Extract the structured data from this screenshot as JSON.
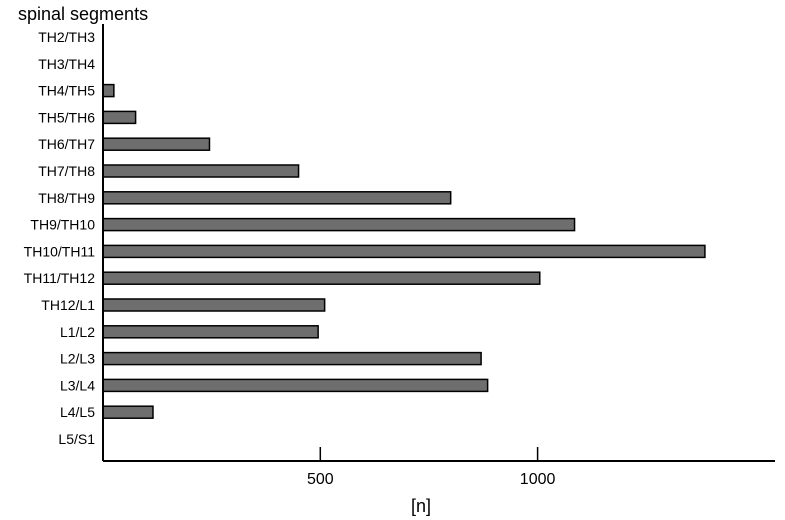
{
  "chart_data": {
    "type": "bar",
    "orientation": "horizontal",
    "title": "",
    "ylabel": "spinal segments",
    "xlabel": "[n]",
    "categories": [
      "TH2/TH3",
      "TH3/TH4",
      "TH4/TH5",
      "TH5/TH6",
      "TH6/TH7",
      "TH7/TH8",
      "TH8/TH9",
      "TH9/TH10",
      "TH10/TH11",
      "TH11/TH12",
      "TH12/L1",
      "L1/L2",
      "L2/L3",
      "L3/L4",
      "L4/L5",
      "L5/S1"
    ],
    "values": [
      0,
      0,
      25,
      75,
      245,
      450,
      800,
      1085,
      1385,
      1005,
      510,
      495,
      870,
      885,
      115,
      0
    ],
    "xlim": [
      0,
      1550
    ],
    "xticks": [
      500,
      1000
    ],
    "xtick_labels": [
      "500",
      "1000"
    ],
    "grid": false,
    "bar_color": "#6e6e6e"
  }
}
